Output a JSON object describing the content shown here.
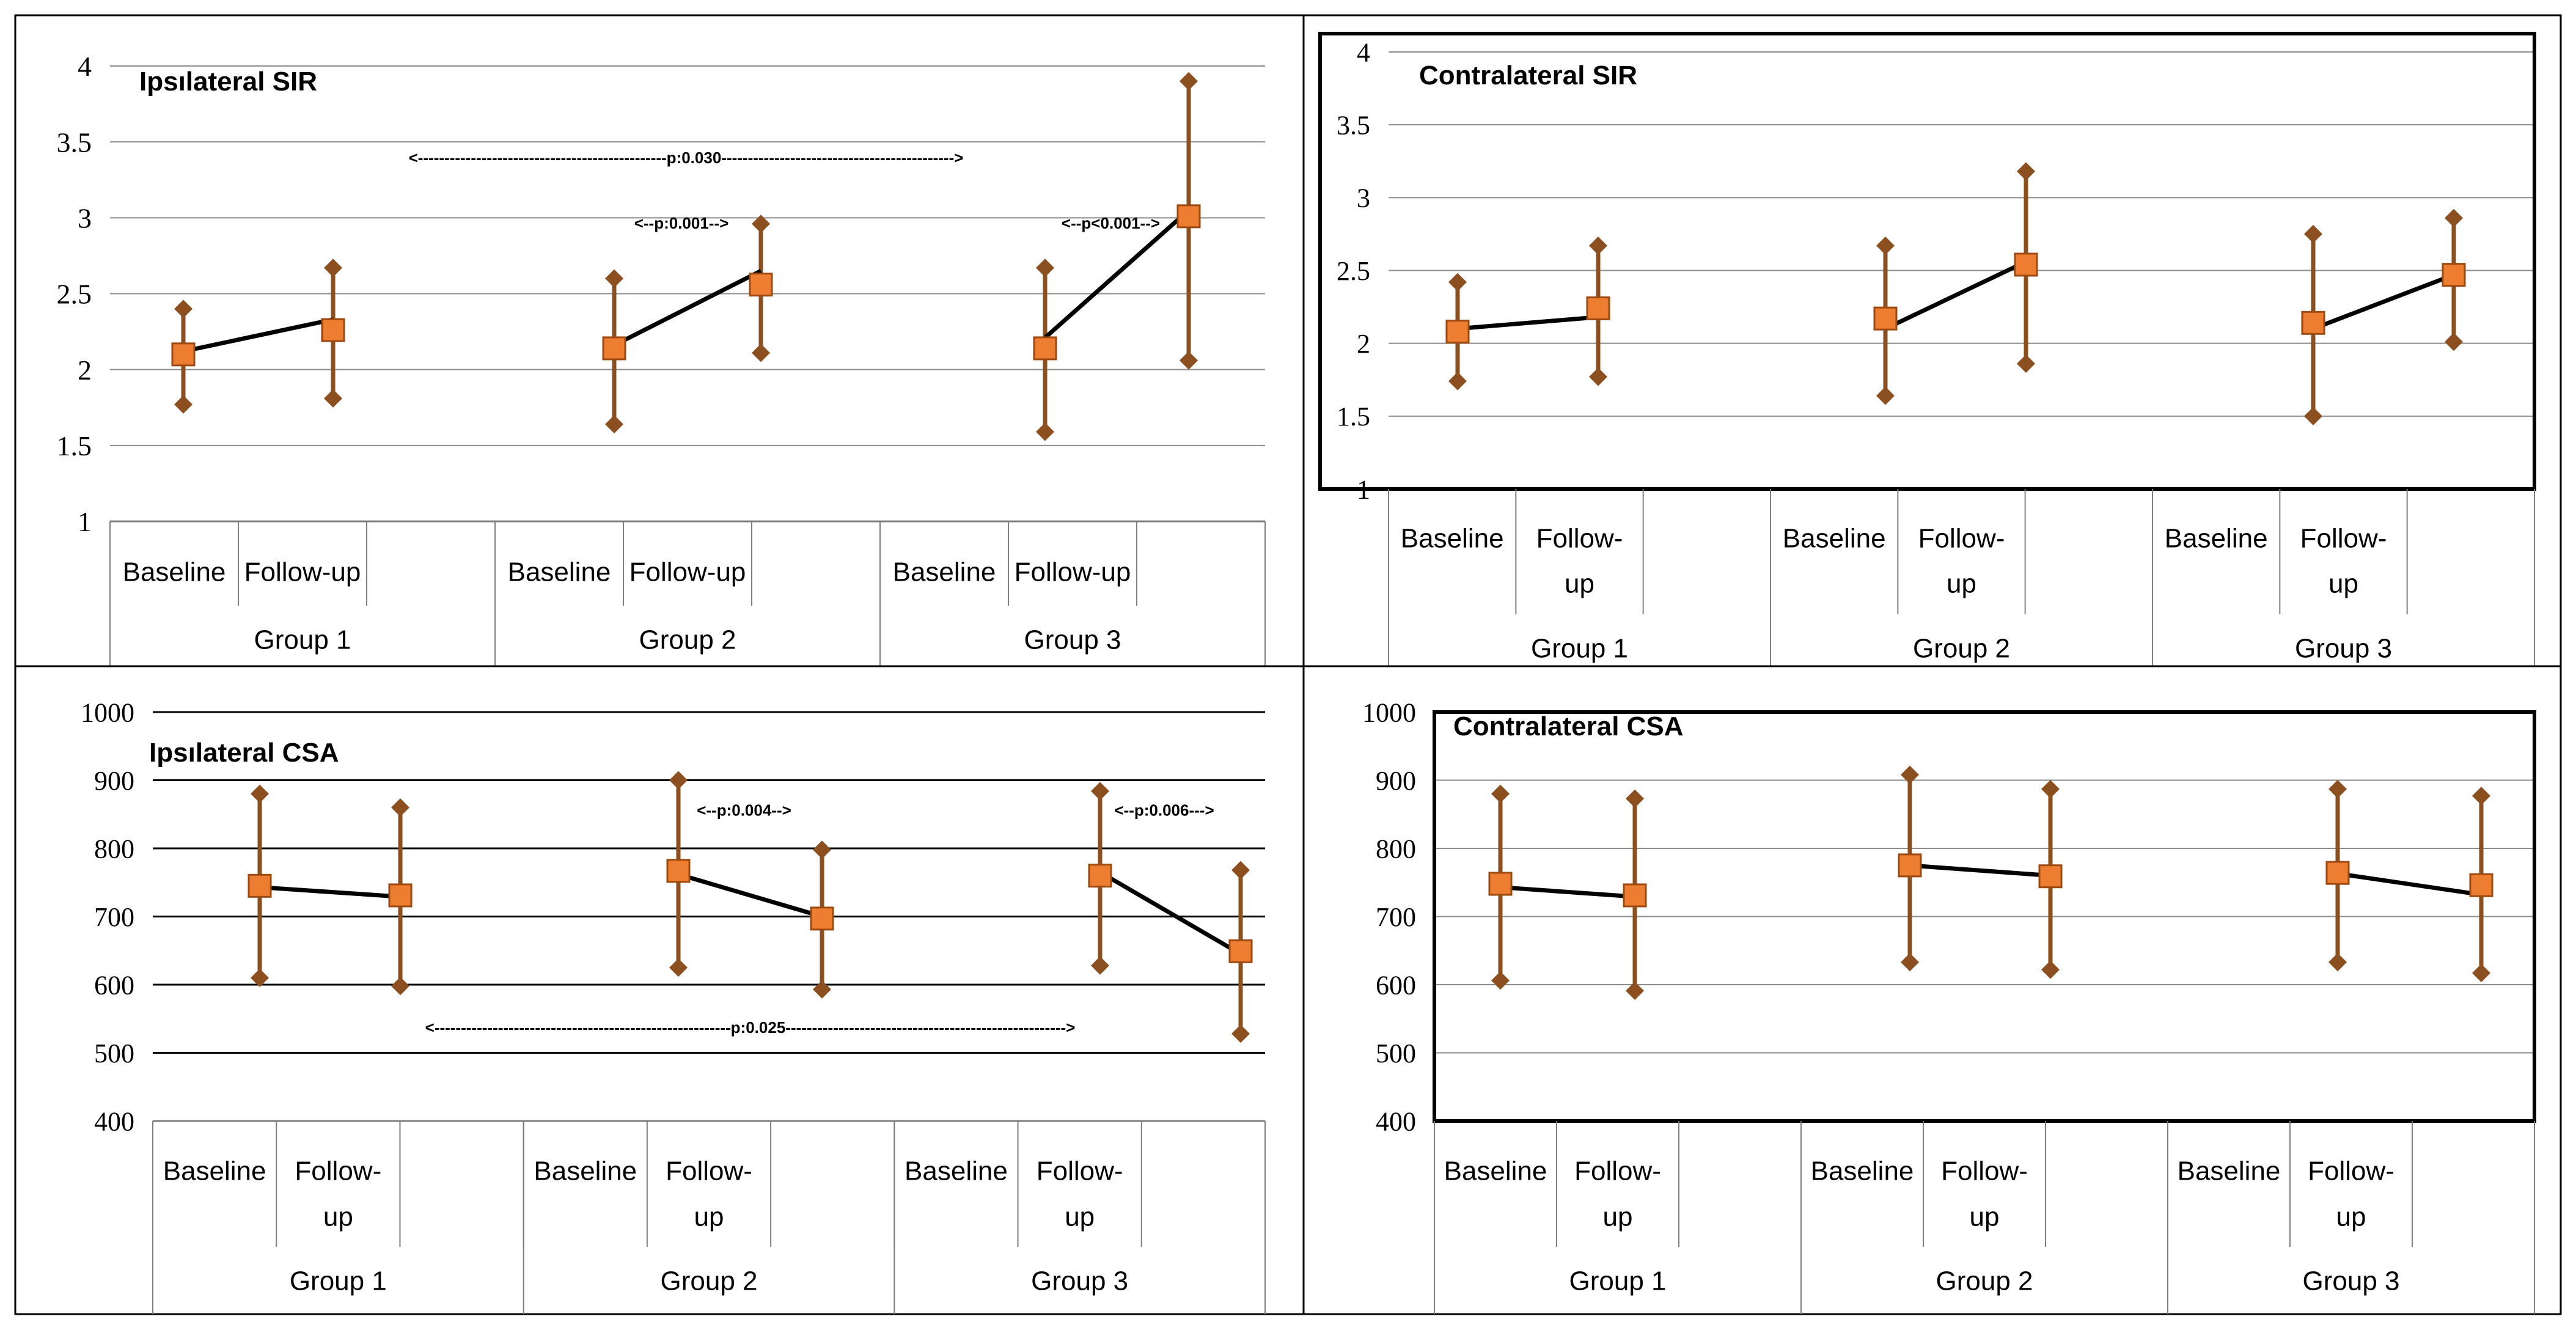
{
  "figure": {
    "panels_order": [
      "ipsilateral_sir",
      "contralateral_sir",
      "ipsilateral_csa",
      "contralateral_csa"
    ]
  },
  "colors": {
    "marker_fill": "#ED7D31",
    "marker_stroke": "#9C4A12",
    "whisker": "#8B4F20",
    "trend_line": "#000000",
    "gridline": "#8C8C8C",
    "gridline_strong": "#000000",
    "frame": "#000000",
    "axis": "#7F7F7F"
  },
  "chart_data": [
    {
      "id": "ipsilateral_sir",
      "type": "line",
      "title": "Ipsılateral SIR",
      "ylim": [
        1,
        4
      ],
      "yticks": [
        "1",
        "1.5",
        "2",
        "2.5",
        "3",
        "3.5",
        "4"
      ],
      "grid": true,
      "category_labels": [
        "Baseline",
        "Follow-up"
      ],
      "category_label_lines": [
        [
          "Baseline"
        ],
        [
          "Follow-up"
        ]
      ],
      "groups": [
        {
          "name": "Group 1",
          "mean": [
            2.1,
            2.26
          ],
          "high": [
            2.4,
            2.67
          ],
          "low": [
            1.77,
            1.81
          ],
          "trend": [
            2.12,
            2.33
          ]
        },
        {
          "name": "Group 2",
          "mean": [
            2.14,
            2.56
          ],
          "high": [
            2.6,
            2.96
          ],
          "low": [
            1.64,
            2.11
          ],
          "trend": [
            2.16,
            2.65
          ]
        },
        {
          "name": "Group 3",
          "mean": [
            2.14,
            3.01
          ],
          "high": [
            2.67,
            3.9
          ],
          "low": [
            1.59,
            2.06
          ],
          "trend": [
            2.21,
            3.05
          ]
        }
      ],
      "annotations": [
        {
          "label": "<--p:0.001-->",
          "group": 1,
          "value": 2.97
        },
        {
          "label": "<--p<0.001-->",
          "group": 2,
          "value": 2.97
        },
        {
          "label": "<-----------------------------------------------p:0.030-------------------------------------------->",
          "from_group": 0,
          "to_group": 2,
          "value": 3.4
        }
      ]
    },
    {
      "id": "contralateral_sir",
      "type": "line",
      "title": "Contralateral SIR",
      "ylim": [
        1,
        4
      ],
      "yticks": [
        "1",
        "1.5",
        "2",
        "2.5",
        "3",
        "3.5",
        "4"
      ],
      "grid": true,
      "category_labels": [
        "Baseline",
        "Follow-up"
      ],
      "category_label_lines": [
        [
          "Baseline"
        ],
        [
          "Follow-",
          "up"
        ]
      ],
      "groups": [
        {
          "name": "Group 1",
          "mean": [
            2.08,
            2.24
          ],
          "high": [
            2.42,
            2.67
          ],
          "low": [
            1.74,
            1.77
          ],
          "trend": [
            2.1,
            2.18
          ]
        },
        {
          "name": "Group 2",
          "mean": [
            2.17,
            2.54
          ],
          "high": [
            2.67,
            3.18
          ],
          "low": [
            1.64,
            1.86
          ],
          "trend": [
            2.1,
            2.56
          ]
        },
        {
          "name": "Group 3",
          "mean": [
            2.14,
            2.47
          ],
          "high": [
            2.75,
            2.86
          ],
          "low": [
            1.5,
            2.01
          ],
          "trend": [
            2.1,
            2.47
          ]
        }
      ],
      "annotations": []
    },
    {
      "id": "ipsilateral_csa",
      "type": "line",
      "title": "Ipsılateral CSA",
      "ylim": [
        400,
        1000
      ],
      "yticks": [
        "400",
        "500",
        "600",
        "700",
        "800",
        "900",
        "1000"
      ],
      "grid": true,
      "category_labels": [
        "Baseline",
        "Follow-up"
      ],
      "category_label_lines": [
        [
          "Baseline"
        ],
        [
          "Follow-",
          "up"
        ]
      ],
      "groups": [
        {
          "name": "Group 1",
          "mean": [
            745,
            731
          ],
          "high": [
            880,
            860
          ],
          "low": [
            610,
            598
          ],
          "trend": [
            743,
            729
          ]
        },
        {
          "name": "Group 2",
          "mean": [
            767,
            697
          ],
          "high": [
            900,
            798
          ],
          "low": [
            625,
            593
          ],
          "trend": [
            762,
            700
          ]
        },
        {
          "name": "Group 3",
          "mean": [
            760,
            649
          ],
          "high": [
            884,
            768
          ],
          "low": [
            628,
            528
          ],
          "trend": [
            765,
            645
          ]
        }
      ],
      "annotations": [
        {
          "label": "<--p:0.004-->",
          "group": 1,
          "value": 857
        },
        {
          "label": "<--p:0.006--->",
          "group": 2,
          "value": 857
        },
        {
          "label": "<--------------------------------------------------------p:0.025----------------------------------------------------->",
          "from_group": 0,
          "to_group": 2,
          "value": 538
        }
      ]
    },
    {
      "id": "contralateral_csa",
      "type": "line",
      "title": "Contralateral CSA",
      "ylim": [
        400,
        1000
      ],
      "yticks": [
        "400",
        "500",
        "600",
        "700",
        "800",
        "900",
        "1000"
      ],
      "grid": true,
      "category_labels": [
        "Baseline",
        "Follow-up"
      ],
      "category_label_lines": [
        [
          "Baseline"
        ],
        [
          "Follow-",
          "up"
        ]
      ],
      "groups": [
        {
          "name": "Group 1",
          "mean": [
            748,
            731
          ],
          "high": [
            880,
            873
          ],
          "low": [
            606,
            591
          ],
          "trend": [
            743,
            729
          ]
        },
        {
          "name": "Group 2",
          "mean": [
            775,
            759
          ],
          "high": [
            908,
            887
          ],
          "low": [
            633,
            622
          ],
          "trend": [
            775,
            760
          ]
        },
        {
          "name": "Group 3",
          "mean": [
            764,
            746
          ],
          "high": [
            887,
            877
          ],
          "low": [
            633,
            617
          ],
          "trend": [
            763,
            732
          ]
        }
      ],
      "annotations": []
    }
  ]
}
